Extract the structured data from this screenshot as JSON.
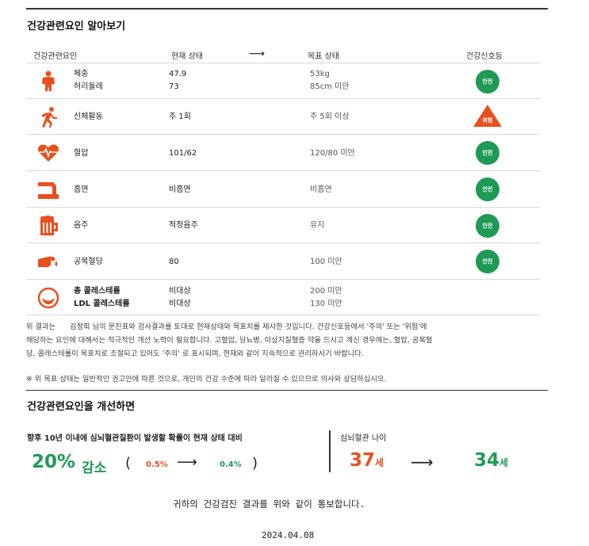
{
  "section1": {
    "title": "건강관련요인 알아보기",
    "headers": {
      "factor": "건강관련요인",
      "current": "현재 상태",
      "arrow": "⟶",
      "goal": "목표 상태",
      "signal": "건강신호등"
    }
  },
  "rows": [
    {
      "icon": "body-icon",
      "name1": "체중",
      "name2": "허리둘레",
      "cur1": "47.9",
      "cur2": "73",
      "goal1": "53kg",
      "goal2": "85cm 미만",
      "badge": "안전",
      "status": "safe"
    },
    {
      "icon": "running-icon",
      "name1": "신체활동",
      "cur1": "주 1회",
      "goal1": "주 5회 이상",
      "badge": "위험",
      "status": "risk"
    },
    {
      "icon": "heart-icon",
      "name1": "혈압",
      "cur1": "101/62",
      "goal1": "120/80 미만",
      "badge": "안전",
      "status": "safe"
    },
    {
      "icon": "smoking-icon",
      "name1": "흡연",
      "cur1": "비흡연",
      "goal1": "비흡연",
      "badge": "안전",
      "status": "safe"
    },
    {
      "icon": "beer-icon",
      "name1": "음주",
      "cur1": "적정음주",
      "goal1": "유지",
      "badge": "안전",
      "status": "safe"
    },
    {
      "icon": "finger-blood-icon",
      "name1": "공복혈당",
      "cur1": "80",
      "goal1": "100 미만",
      "badge": "안전",
      "status": "safe"
    },
    {
      "icon": "cholesterol-icon",
      "name1": "총 콜레스테롤",
      "name2": "LDL 콜레스테롤",
      "cur1": "비대상",
      "cur2": "비대상",
      "goal1": "200 미만",
      "goal2": "130 미만"
    }
  ],
  "explanation": {
    "prefix": "위 결과는",
    "patient": "김정희",
    "line1_rest": "님의 문진표와 검사결과를 토대로 현재상태와 목표치를 제시한 것입니다. 건강신호등에서 '주의' 또는 '위험'에",
    "line2": "해당하는 요인에 대해서는 적극적인 개선 노력이 필요합니다. 고혈압, 당뇨병, 이상지질혈증 약을 드시고 계신 경우에는, 혈압, 공복혈",
    "line3": "당, 콜레스테롤이 목표치로 조절되고 있어도 '주의' 로 표시되며, 현재와 같이 지속적으로 관리하시기 바랍니다.",
    "note": "※ 위 목표 상태는 일반적인 권고안에 따른 것으로, 개인의 건강 수준에 따라 달라질 수 있으므로 의사와 상담하십시오."
  },
  "section2": {
    "title": "건강관련요인을 개선하면",
    "risk_label": "향후 10년 이내에 심뇌혈관질환이 발생할 확률이 현재 상태 대비",
    "reduction_value": "20%",
    "reduction_word": "감소",
    "open_paren": "(",
    "close_paren": ")",
    "risk_from": "0.5%",
    "risk_to": "0.4%",
    "arrow": "⟶",
    "age_label": "심뇌혈관 나이",
    "age_current": "37",
    "age_target": "34",
    "age_unit": "세"
  },
  "footer": {
    "notice": "귀하의 건강검진 결과를 위와 같이 통보합니다.",
    "date": "2024.04.08"
  },
  "colors": {
    "safe": "#1f9a54",
    "risk": "#e8501e",
    "icon": "#e8501e"
  }
}
